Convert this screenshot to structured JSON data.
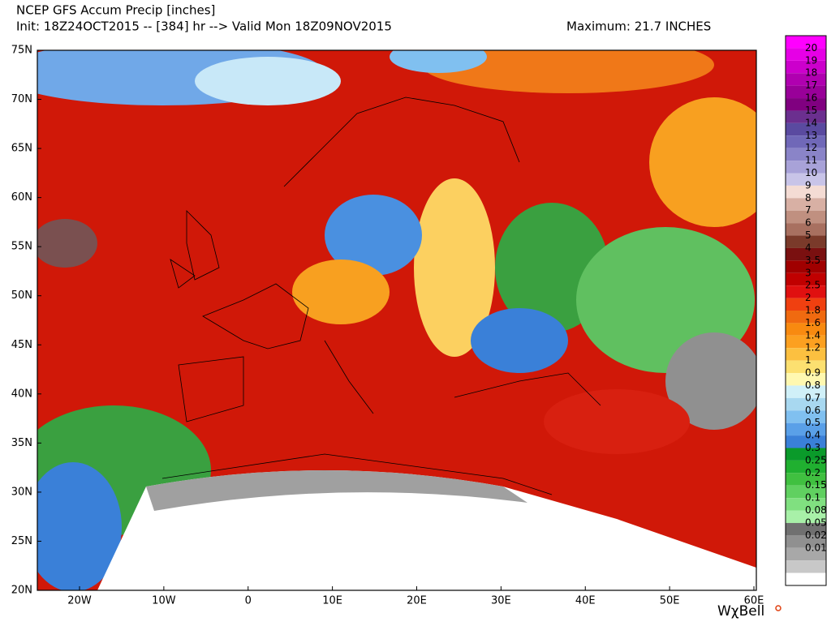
{
  "header": {
    "title": "NCEP GFS Accum Precip [inches]",
    "subtitle": "Init: 18Z24OCT2015 -- [384] hr --> Valid Mon 18Z09NOV2015",
    "maximum": "Maximum: 21.7 INCHES"
  },
  "map": {
    "lat_labels": [
      "75N",
      "70N",
      "65N",
      "60N",
      "55N",
      "50N",
      "45N",
      "40N",
      "35N",
      "30N",
      "25N",
      "20N"
    ],
    "lon_labels": [
      "20W",
      "10W",
      "0",
      "10E",
      "20E",
      "30E",
      "40E",
      "50E",
      "60E"
    ]
  },
  "colorbar": {
    "labels": [
      "20",
      "19",
      "18",
      "17",
      "16",
      "15",
      "14",
      "13",
      "12",
      "11",
      "10",
      "9",
      "8",
      "7",
      "6",
      "5",
      "4",
      "3.5",
      "3",
      "2.5",
      "2",
      "1.8",
      "1.6",
      "1.4",
      "1.2",
      "1",
      "0.9",
      "0.8",
      "0.7",
      "0.6",
      "0.5",
      "0.4",
      "0.3",
      "0.25",
      "0.2",
      "0.15",
      "0.1",
      "0.08",
      "0.05",
      "0.02",
      "0.01"
    ],
    "colors": [
      "#ff00ff",
      "#e600e6",
      "#cc00cc",
      "#b000b0",
      "#990099",
      "#800080",
      "#6b2f8f",
      "#5a4aa0",
      "#7068b8",
      "#8a84c8",
      "#a8a2d8",
      "#c8c4e8",
      "#f4dcd4",
      "#d8b0a4",
      "#c09080",
      "#a87060",
      "#7a3a2a",
      "#7a1010",
      "#a00000",
      "#c00000",
      "#e01010",
      "#f04010",
      "#f06a10",
      "#f88a10",
      "#fca020",
      "#fcc040",
      "#fce070",
      "#fff8b0",
      "#d0f0f8",
      "#a8d8f0",
      "#80c0f0",
      "#5aa0e8",
      "#3a80d8",
      "#0a9a2a",
      "#20b030",
      "#40c040",
      "#60d060",
      "#80e080",
      "#a8f0a8",
      "#707070",
      "#909090",
      "#a8a8a8",
      "#c8c8c8",
      "#ffffff"
    ]
  },
  "logo": "WχBell"
}
